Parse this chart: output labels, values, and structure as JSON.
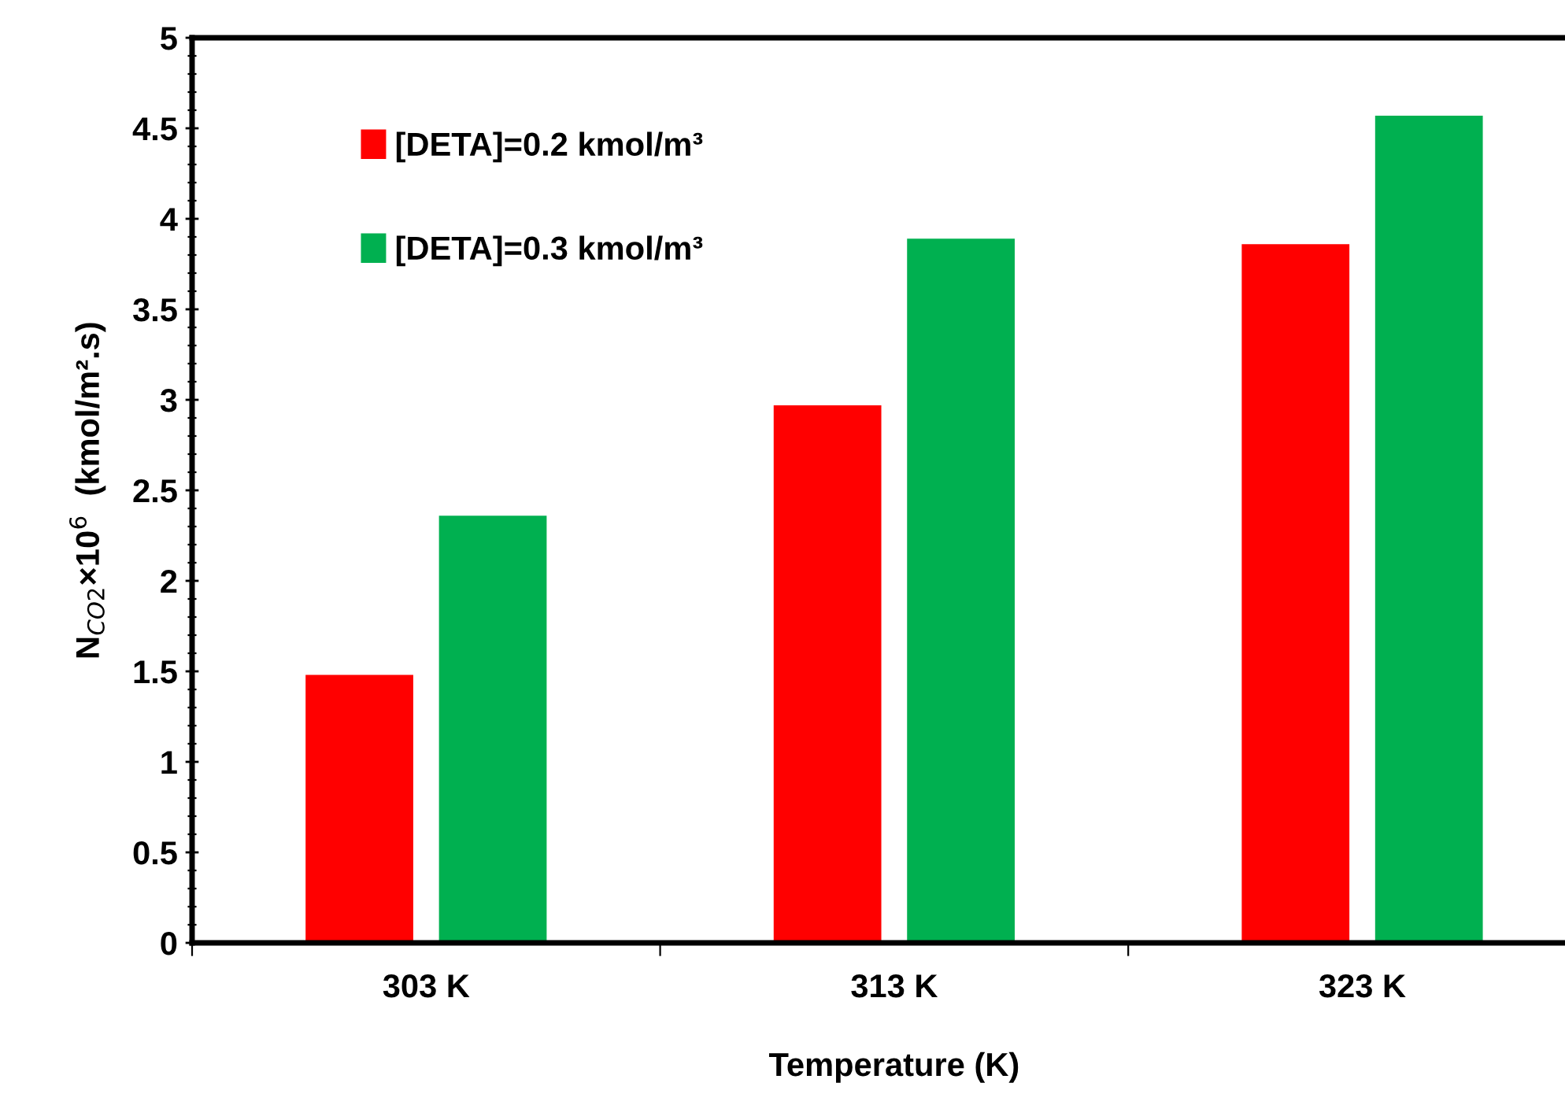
{
  "chart_data": {
    "type": "bar",
    "xlabel": "Temperature (K)",
    "ylabel": "N$_{CO2}$×10$^{6}$  (kmol/m².s)",
    "categories": [
      "303 K",
      "313 K",
      "323 K"
    ],
    "series": [
      {
        "name": "[DETA]=0.2 kmol/m³",
        "color": "#ff0000",
        "values": [
          1.48,
          2.97,
          3.86
        ]
      },
      {
        "name": "[DETA]=0.3 kmol/m³",
        "color": "#00b050",
        "values": [
          2.36,
          3.89,
          4.57
        ]
      }
    ],
    "ylim": [
      0,
      5
    ],
    "yticks": [
      0,
      0.5,
      1,
      1.5,
      2,
      2.5,
      3,
      3.5,
      4,
      4.5,
      5
    ],
    "grid": false,
    "legend": "top left"
  }
}
